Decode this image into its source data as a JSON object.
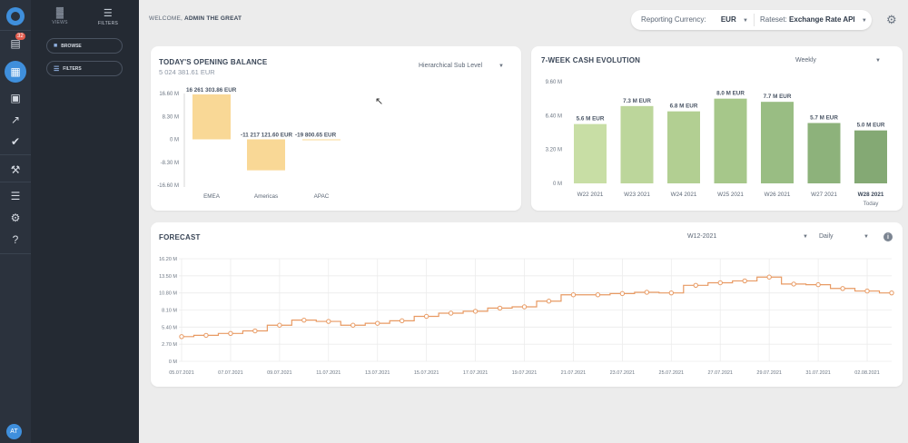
{
  "rail": {
    "notification_badge": "32",
    "avatar_initials": "AT"
  },
  "panel": {
    "tab_views": "VIEWS",
    "tab_filters": "FILTERS",
    "browse_label": "BROWSE",
    "filters_label": "FILTERS"
  },
  "header": {
    "welcome_prefix": "WELCOME,",
    "user_name": "ADMIN THE GREAT",
    "currency_label": "Reporting Currency:",
    "currency_value": "EUR",
    "rateset_label": "Rateset:",
    "rateset_value": "Exchange Rate API"
  },
  "opening_balance": {
    "title": "TODAY'S OPENING BALANCE",
    "total": "5 024 381.61 EUR",
    "dropdown_value": "Hierarchical Sub Level"
  },
  "cash_evolution": {
    "title": "7-WEEK CASH EVOLUTION",
    "dropdown_value": "Weekly"
  },
  "forecast": {
    "title": "FORECAST",
    "period_value": "W12-2021",
    "granularity_value": "Daily"
  },
  "chart_data": [
    {
      "type": "bar",
      "chart": "opening_balance",
      "categories": [
        "EMEA",
        "Americas",
        "APAC"
      ],
      "values": [
        16261303.86,
        -11217121.6,
        -19800.65
      ],
      "labels": [
        "16 261 303.86 EUR",
        "-11 217 121.60 EUR",
        "-19 800.65 EUR"
      ],
      "ylim": [
        -16.6,
        16.6
      ],
      "yticks": [
        16.6,
        8.3,
        0,
        -8.3,
        -16.6
      ],
      "ytick_labels": [
        "16.60 M",
        "8.30 M",
        "0 M",
        "-8.30 M",
        "-16.60 M"
      ],
      "color": "#f9d896"
    },
    {
      "type": "bar",
      "chart": "cash_evolution",
      "categories": [
        "W22 2021",
        "W23 2021",
        "W24 2021",
        "W25 2021",
        "W26 2021",
        "W27 2021",
        "W28 2021"
      ],
      "values": [
        5.6,
        7.3,
        6.8,
        8.0,
        7.7,
        5.7,
        5.0
      ],
      "labels": [
        "5.6 M EUR",
        "7.3 M EUR",
        "6.8 M EUR",
        "8.0 M EUR",
        "7.7 M EUR",
        "5.7 M EUR",
        "5.0 M EUR"
      ],
      "today_label": "Today",
      "ylim": [
        0,
        9.6
      ],
      "yticks": [
        9.6,
        6.4,
        3.2,
        0
      ],
      "ytick_labels": [
        "9.60 M",
        "6.40 M",
        "3.20 M",
        "0 M"
      ],
      "colors": [
        "#c8dea5",
        "#bcd69b",
        "#b2cf92",
        "#a6c78a",
        "#99bd83",
        "#8db27b",
        "#84a974"
      ]
    },
    {
      "type": "line",
      "chart": "forecast",
      "x": [
        "05.07.2021",
        "06.07.2021",
        "07.07.2021",
        "08.07.2021",
        "09.07.2021",
        "10.07.2021",
        "11.07.2021",
        "12.07.2021",
        "13.07.2021",
        "14.07.2021",
        "15.07.2021",
        "16.07.2021",
        "17.07.2021",
        "18.07.2021",
        "19.07.2021",
        "20.07.2021",
        "21.07.2021",
        "22.07.2021",
        "23.07.2021",
        "24.07.2021",
        "25.07.2021",
        "26.07.2021",
        "27.07.2021",
        "28.07.2021",
        "29.07.2021",
        "30.07.2021",
        "31.07.2021",
        "01.08.2021",
        "02.08.2021",
        "03.08.2021"
      ],
      "y": [
        3.9,
        4.1,
        4.4,
        4.8,
        5.7,
        6.5,
        6.3,
        5.7,
        6.0,
        6.4,
        7.1,
        7.6,
        7.9,
        8.4,
        8.6,
        9.5,
        10.5,
        10.5,
        10.7,
        10.9,
        10.8,
        12.0,
        12.4,
        12.7,
        13.3,
        12.2,
        12.1,
        11.5,
        11.1,
        10.8
      ],
      "xtick_labels": [
        "05.07.2021",
        "07.07.2021",
        "09.07.2021",
        "11.07.2021",
        "13.07.2021",
        "15.07.2021",
        "17.07.2021",
        "19.07.2021",
        "21.07.2021",
        "23.07.2021",
        "25.07.2021",
        "27.07.2021",
        "29.07.2021",
        "31.07.2021",
        "02.08.2021"
      ],
      "ylim": [
        0,
        16.2
      ],
      "yticks": [
        16.2,
        13.5,
        10.8,
        8.1,
        5.4,
        2.7,
        0
      ],
      "ytick_labels": [
        "16.20 M",
        "13.50 M",
        "10.80 M",
        "8.10 M",
        "5.40 M",
        "2.70 M",
        "0 M"
      ],
      "color": "#e89a63",
      "grid": true
    }
  ]
}
